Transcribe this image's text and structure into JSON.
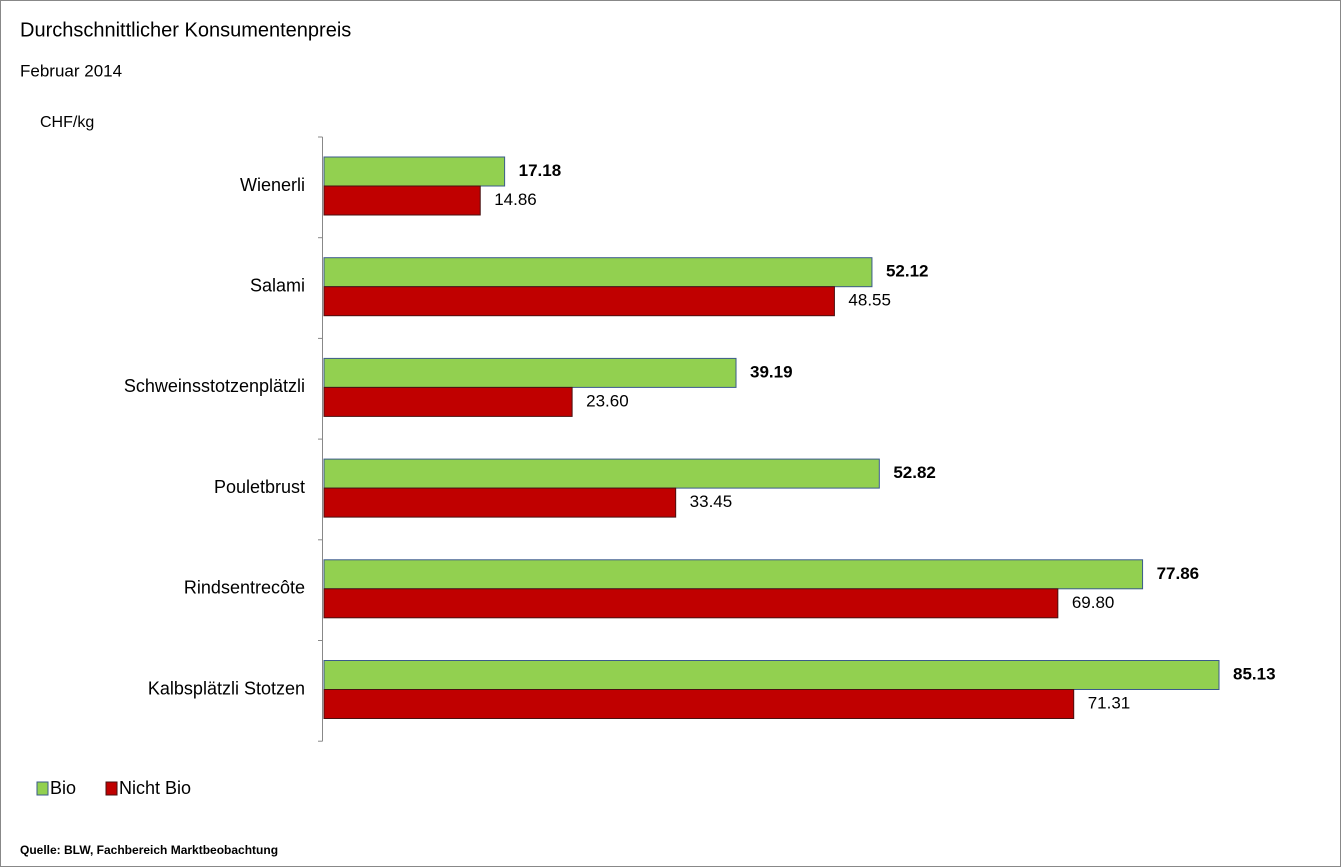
{
  "chart_data": {
    "type": "bar",
    "orientation": "horizontal",
    "title": "Durchschnittlicher Konsumentenpreis",
    "subtitle": "Februar 2014",
    "unit_label": "CHF/kg",
    "source": "Quelle: BLW, Fachbereich Marktbeobachtung",
    "categories": [
      "Wienerli",
      "Salami",
      "Schweinsstotzenplätzli",
      "Pouletbrust",
      "Rindsentrecôte",
      "Kalbsplätzli Stotzen"
    ],
    "series": [
      {
        "name": "Bio",
        "color": "#92d050",
        "values": [
          17.18,
          52.12,
          39.19,
          52.82,
          77.86,
          85.13
        ],
        "value_labels": [
          "17.18",
          "52.12",
          "39.19",
          "52.82",
          "77.86",
          "85.13"
        ]
      },
      {
        "name": "Nicht Bio",
        "color": "#c00000",
        "values": [
          14.86,
          48.55,
          23.6,
          33.45,
          69.8,
          71.31
        ],
        "value_labels": [
          "14.86",
          "48.55",
          "23.60",
          "33.45",
          "69.80",
          "71.31"
        ]
      }
    ],
    "legend": "bottom-left"
  }
}
